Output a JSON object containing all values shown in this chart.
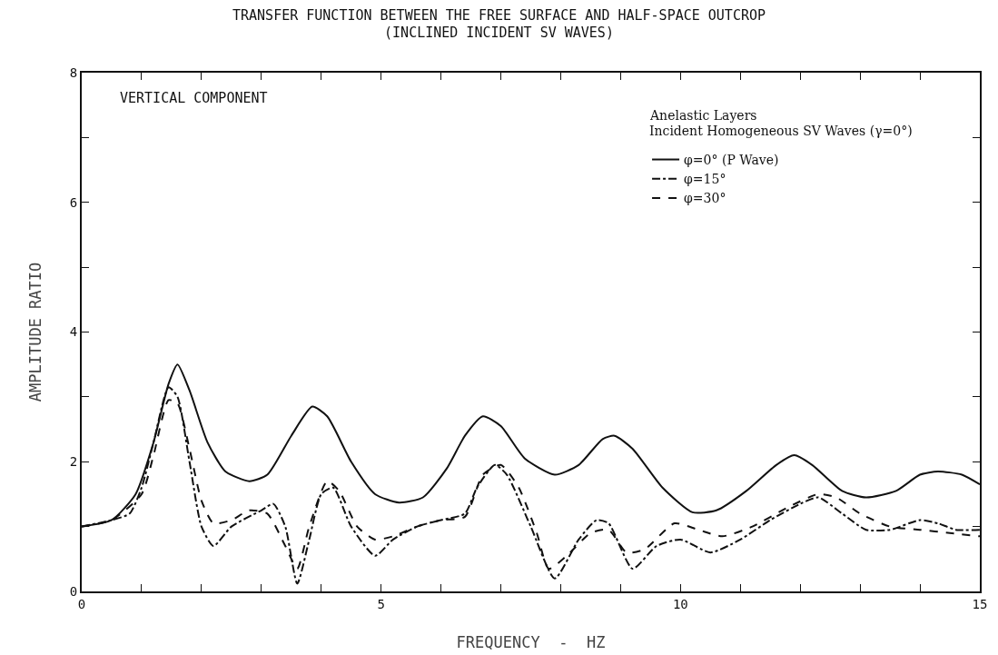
{
  "chart_data": {
    "type": "line",
    "title": "TRANSFER FUNCTION BETWEEN THE FREE SURFACE AND HALF-SPACE OUTCROP",
    "subtitle": "(INCLINED INCIDENT SV WAVES)",
    "xlabel": "FREQUENCY  -  HZ",
    "ylabel": "AMPLITUDE RATIO",
    "annotations": [
      "VERTICAL COMPONENT",
      "Anelastic Layers",
      "Incident Homogeneous SV Waves (γ=0°)"
    ],
    "xlim": [
      0,
      15
    ],
    "ylim": [
      0,
      8
    ],
    "xticks": [
      0,
      {
        "value": 1,
        "label": null
      },
      {
        "value": 2,
        "label": null
      },
      {
        "value": 3,
        "label": null
      },
      {
        "value": 4,
        "label": null
      },
      5,
      {
        "value": 6,
        "label": null
      },
      {
        "value": 7,
        "label": null
      },
      {
        "value": 8,
        "label": null
      },
      {
        "value": 9,
        "label": null
      },
      10,
      {
        "value": 11,
        "label": null
      },
      {
        "value": 12,
        "label": null
      },
      {
        "value": 13,
        "label": null
      },
      {
        "value": 14,
        "label": null
      },
      15
    ],
    "yticks": [
      0,
      {
        "value": 1,
        "label": null
      },
      2,
      {
        "value": 3,
        "label": null
      },
      4,
      {
        "value": 5,
        "label": null
      },
      6,
      {
        "value": 7,
        "label": null
      },
      8
    ],
    "grid": false,
    "legend": "top right",
    "marker": "none",
    "series": [
      {
        "name": "φ=0° (P Wave)",
        "color": "#111111",
        "line_style": "solid",
        "x": [
          0,
          0.5,
          0.9,
          1.2,
          1.45,
          1.6,
          1.8,
          2.1,
          2.4,
          2.8,
          3.1,
          3.5,
          3.85,
          4.1,
          4.5,
          4.9,
          5.3,
          5.7,
          6.1,
          6.4,
          6.7,
          7.0,
          7.4,
          7.9,
          8.3,
          8.7,
          8.9,
          9.2,
          9.7,
          10.2,
          10.6,
          11.1,
          11.6,
          11.9,
          12.2,
          12.7,
          13.1,
          13.6,
          14.0,
          14.3,
          14.7,
          15
        ],
        "values": [
          1.0,
          1.1,
          1.5,
          2.3,
          3.2,
          3.5,
          3.1,
          2.3,
          1.85,
          1.7,
          1.8,
          2.4,
          2.85,
          2.7,
          2.0,
          1.5,
          1.37,
          1.45,
          1.9,
          2.4,
          2.7,
          2.55,
          2.05,
          1.8,
          1.95,
          2.35,
          2.4,
          2.2,
          1.6,
          1.22,
          1.25,
          1.55,
          1.95,
          2.1,
          1.95,
          1.55,
          1.45,
          1.55,
          1.8,
          1.85,
          1.8,
          1.65
        ]
      },
      {
        "name": "φ=15°",
        "color": "#111111",
        "line_style": "dashdot",
        "x": [
          0,
          0.5,
          0.8,
          1.0,
          1.2,
          1.45,
          1.6,
          1.8,
          2.0,
          2.2,
          2.5,
          3.0,
          3.2,
          3.4,
          3.6,
          3.8,
          4.0,
          4.2,
          4.5,
          4.9,
          5.2,
          5.6,
          6.0,
          6.4,
          6.6,
          6.9,
          7.1,
          7.5,
          7.9,
          8.3,
          8.6,
          8.8,
          9.2,
          9.6,
          10.0,
          10.5,
          11.0,
          11.5,
          12.0,
          12.3,
          12.7,
          13.1,
          13.5,
          14.0,
          14.3,
          14.6,
          15
        ],
        "values": [
          1.0,
          1.1,
          1.2,
          1.6,
          2.3,
          3.15,
          3.0,
          2.0,
          1.0,
          0.7,
          1.0,
          1.25,
          1.35,
          1.0,
          0.12,
          0.8,
          1.5,
          1.6,
          1.0,
          0.55,
          0.8,
          1.0,
          1.1,
          1.2,
          1.6,
          1.95,
          1.8,
          1.0,
          0.2,
          0.8,
          1.1,
          1.05,
          0.35,
          0.7,
          0.8,
          0.6,
          0.8,
          1.1,
          1.35,
          1.45,
          1.2,
          0.95,
          0.95,
          1.1,
          1.05,
          0.95,
          0.95
        ]
      },
      {
        "name": "φ=30°",
        "color": "#111111",
        "line_style": "dashed",
        "x": [
          0,
          0.5,
          1.0,
          1.2,
          1.45,
          1.6,
          1.8,
          2.0,
          2.2,
          2.5,
          2.8,
          3.1,
          3.4,
          3.6,
          3.8,
          4.1,
          4.3,
          4.6,
          4.9,
          5.2,
          5.6,
          6.0,
          6.4,
          6.7,
          7.0,
          7.3,
          7.6,
          7.8,
          8.1,
          8.5,
          8.8,
          9.1,
          9.4,
          9.9,
          10.3,
          10.7,
          11.2,
          11.8,
          12.3,
          12.6,
          13.0,
          13.5,
          14.0,
          14.5,
          15
        ],
        "values": [
          1.0,
          1.1,
          1.5,
          2.1,
          2.95,
          2.9,
          2.2,
          1.4,
          1.05,
          1.1,
          1.25,
          1.2,
          0.7,
          0.35,
          1.0,
          1.7,
          1.55,
          1.0,
          0.8,
          0.85,
          1.0,
          1.1,
          1.15,
          1.8,
          1.95,
          1.6,
          0.9,
          0.35,
          0.55,
          0.9,
          0.95,
          0.6,
          0.65,
          1.05,
          0.95,
          0.85,
          1.0,
          1.3,
          1.5,
          1.45,
          1.2,
          1.0,
          0.95,
          0.9,
          0.85
        ]
      }
    ]
  }
}
